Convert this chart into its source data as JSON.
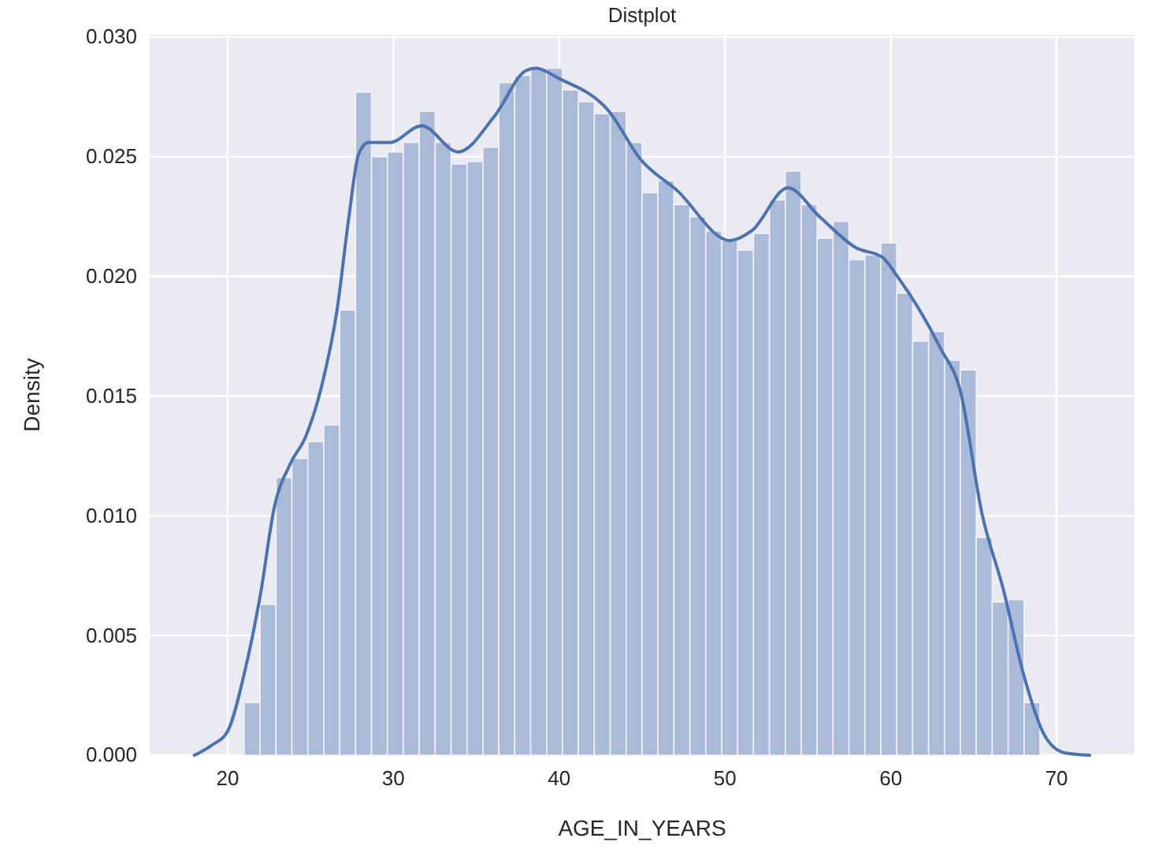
{
  "chart_data": {
    "type": "histogram",
    "title": "Distplot",
    "xlabel": "AGE_IN_YEARS",
    "ylabel": "Density",
    "xlim": [
      15.3,
      74.7
    ],
    "xticks": [
      20,
      30,
      40,
      50,
      60,
      70
    ],
    "ylim": [
      0,
      0.0301
    ],
    "yticks": [
      {
        "value": 0,
        "label": "0.000"
      },
      {
        "value": 0.005,
        "label": "0.005"
      },
      {
        "value": 0.01,
        "label": "0.010"
      },
      {
        "value": 0.015,
        "label": "0.015"
      },
      {
        "value": 0.02,
        "label": "0.020"
      },
      {
        "value": 0.025,
        "label": "0.025"
      },
      {
        "value": 0.03,
        "label": "0.030"
      }
    ],
    "grid": true,
    "series": [
      {
        "color": "#abbad8",
        "bins": [
          21,
          21.96,
          22.92,
          23.88,
          24.84,
          25.8,
          26.76,
          27.72,
          28.68,
          29.64,
          30.6,
          31.56,
          32.52,
          33.48,
          34.44,
          35.4,
          36.36,
          37.32,
          38.28,
          39.24,
          40.2,
          41.16,
          42.12,
          43.08,
          44.04,
          45,
          45.96,
          46.92,
          47.88,
          48.84,
          49.8,
          50.76,
          51.72,
          52.68,
          53.64,
          54.6,
          55.56,
          56.52,
          57.48,
          58.44,
          59.4,
          60.36,
          61.32,
          62.28,
          63.24,
          64.2,
          65.16,
          66.12,
          67.08,
          68.04,
          69
        ],
        "values": [
          0.0022,
          0.0063,
          0.0116,
          0.0124,
          0.0131,
          0.0138,
          0.0186,
          0.0277,
          0.025,
          0.0252,
          0.0256,
          0.0269,
          0.0256,
          0.0247,
          0.0248,
          0.0254,
          0.0281,
          0.0284,
          0.0287,
          0.0287,
          0.0278,
          0.0273,
          0.0268,
          0.0269,
          0.0256,
          0.0235,
          0.024,
          0.023,
          0.0225,
          0.0219,
          0.0215,
          0.0211,
          0.0218,
          0.0232,
          0.0244,
          0.023,
          0.0216,
          0.0223,
          0.0207,
          0.0209,
          0.0214,
          0.0193,
          0.0173,
          0.0177,
          0.0165,
          0.0161,
          0.0091,
          0.0064,
          0.0065,
          0.0022
        ]
      },
      {
        "type": "line",
        "color": "#4c72b0",
        "x": [
          18,
          19,
          20,
          21,
          22,
          22.8,
          23.8,
          24.7,
          25.7,
          26.6,
          27.3,
          27.9,
          28.5,
          29.8,
          31.7,
          33.9,
          36.1,
          38,
          38.6,
          39.9,
          43,
          44.9,
          47.1,
          50.3,
          51.6,
          53.8,
          55.7,
          57.9,
          59.5,
          60.4,
          63,
          64.2,
          65.5,
          66.8,
          68,
          69.3,
          70.5,
          72
        ],
        "values": [
          0,
          0.0004,
          0.001,
          0.0034,
          0.0068,
          0.0103,
          0.0122,
          0.0133,
          0.0155,
          0.0186,
          0.0224,
          0.0251,
          0.0256,
          0.0256,
          0.0263,
          0.0252,
          0.0267,
          0.0286,
          0.0287,
          0.0283,
          0.0269,
          0.0249,
          0.0236,
          0.0215,
          0.0219,
          0.0237,
          0.0225,
          0.0212,
          0.0208,
          0.02,
          0.017,
          0.0152,
          0.0101,
          0.0069,
          0.0034,
          0.0008,
          0.0001,
          0
        ]
      }
    ]
  }
}
